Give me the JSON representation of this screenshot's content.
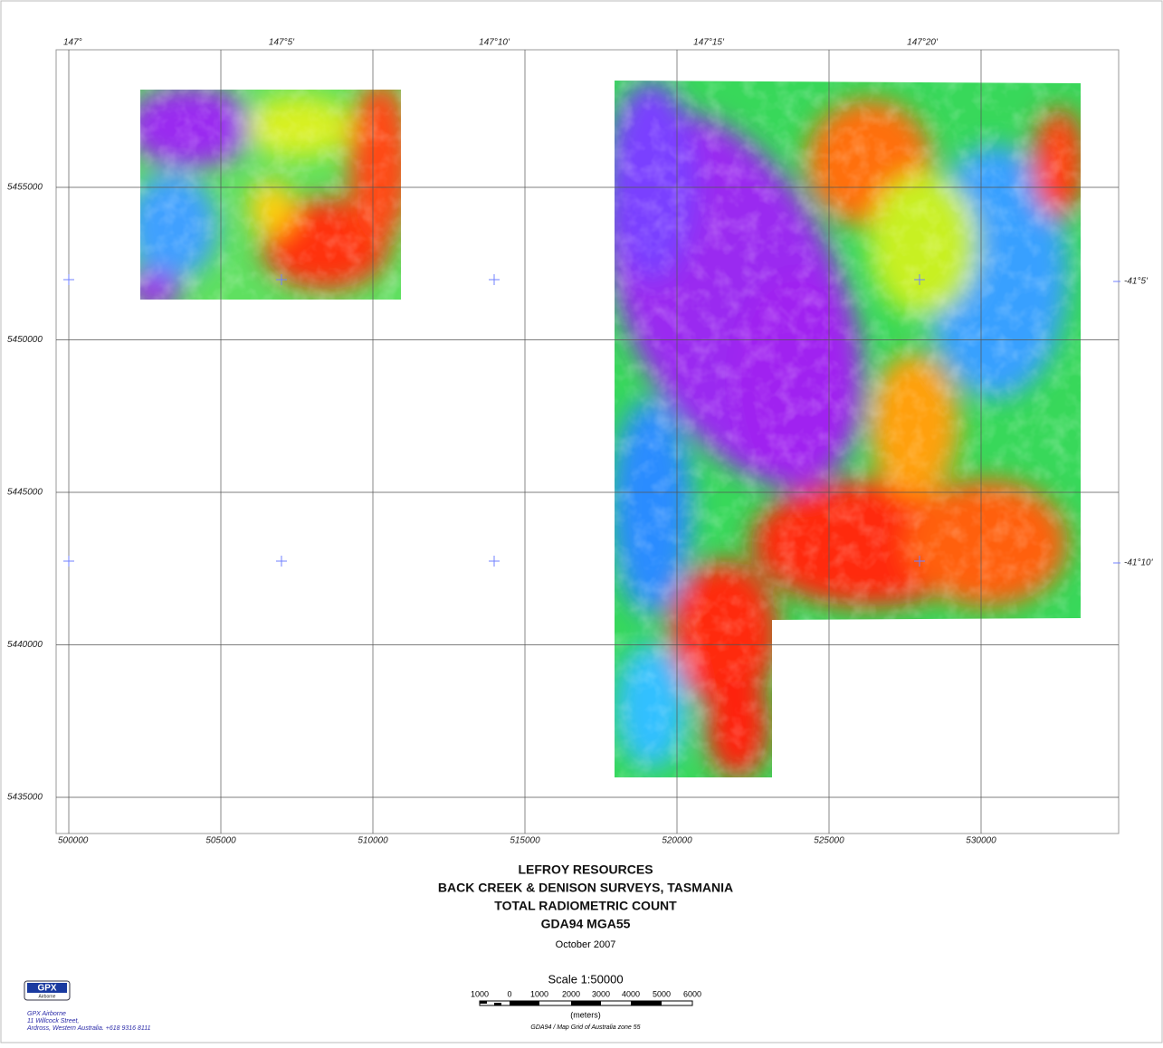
{
  "map": {
    "longitude_labels": [
      "147°",
      "147°5'",
      "147°10'",
      "147°15'",
      "147°20'"
    ],
    "latitude_labels": [
      "-41°5'",
      "-41°10'"
    ],
    "eastings": {
      "xlim": [
        499583,
        534524
      ],
      "ticks": [
        500000,
        505000,
        510000,
        515000,
        520000,
        525000,
        530000
      ]
    },
    "northings": {
      "ylim": [
        5433813,
        5459510
      ],
      "ticks": [
        5455000,
        5450000,
        5445000,
        5440000,
        5435000
      ]
    },
    "title": [
      "LEFROY RESOURCES",
      "BACK CREEK & DENISON SURVEYS, TASMANIA",
      "TOTAL RADIOMETRIC COUNT",
      "GDA94 MGA55"
    ],
    "date": "October 2007",
    "scale": {
      "title": "Scale 1:50000",
      "labels": [
        "1000",
        "0",
        "1000",
        "2000",
        "3000",
        "4000",
        "5000",
        "6000"
      ],
      "units": "(meters)",
      "projection": "GDA94 / Map Grid of Australia zone 55"
    },
    "company": {
      "logo": "GPX",
      "logo_sub": "Airborne",
      "address": [
        "GPX Airborne",
        "11 Willcock Street,",
        "Ardross, Western Australia.  +618 9316 8111"
      ]
    }
  }
}
